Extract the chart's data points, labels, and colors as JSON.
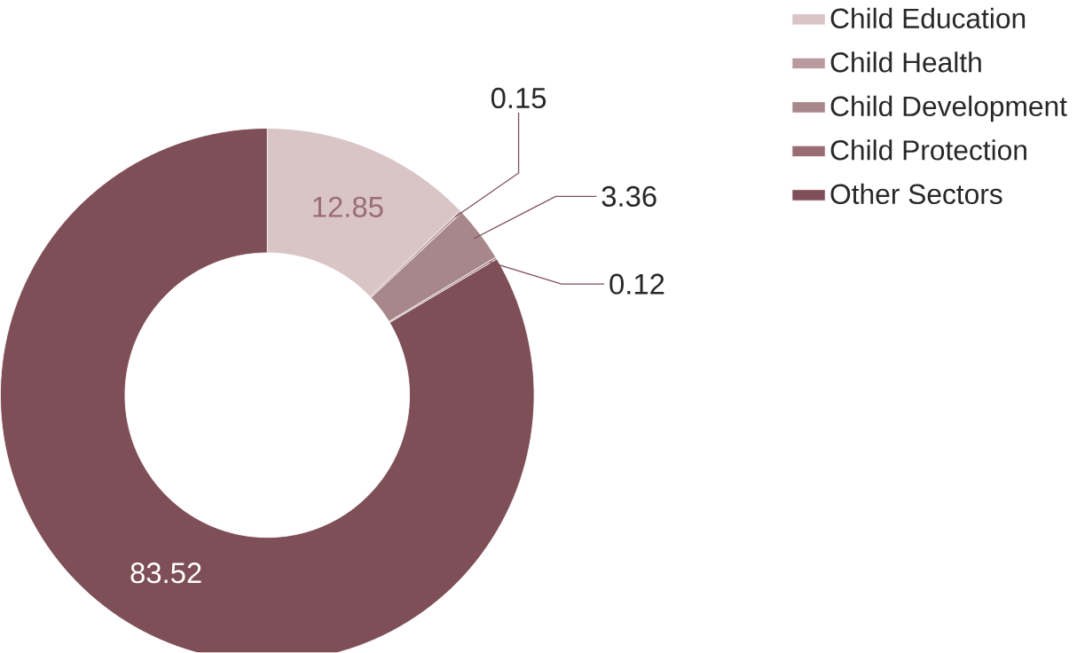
{
  "chart_data": {
    "type": "donut",
    "categories": [
      "Child Education",
      "Child Health",
      "Child Development",
      "Child Protection",
      "Other Sectors"
    ],
    "values": [
      12.85,
      0.15,
      3.36,
      0.12,
      83.52
    ],
    "colors": [
      "#d9c4c6",
      "#b99b9f",
      "#a8878b",
      "#9a6d73",
      "#7f4f58"
    ],
    "data_labels": true,
    "legend": "right"
  }
}
